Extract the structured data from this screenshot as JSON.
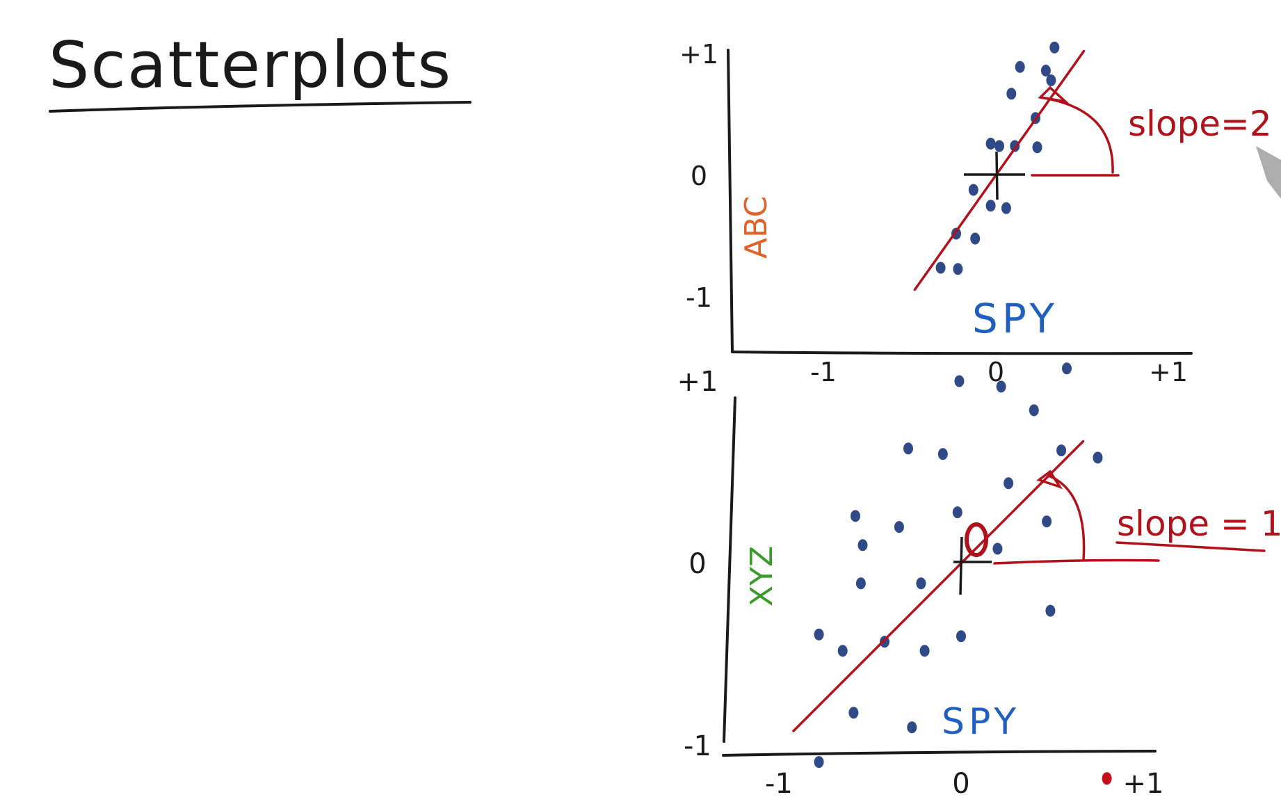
{
  "page": {
    "title": "Scatterplots"
  },
  "colors": {
    "ink": "#1a1a1a",
    "red": "#b0121b",
    "dot": "#2f4a86",
    "spy": "#1f5fbf",
    "abc": "#e0622a",
    "xyz": "#3a9a2a"
  },
  "chart_data": [
    {
      "type": "scatter",
      "xlabel": "SPY",
      "ylabel": "ABC",
      "xlim": [
        -1,
        1
      ],
      "ylim": [
        -1,
        1
      ],
      "x_ticks": [
        -1,
        0,
        1
      ],
      "x_tick_labels": [
        "-1",
        "0",
        "+1"
      ],
      "y_ticks": [
        -1,
        0,
        1
      ],
      "y_tick_labels": [
        "-1",
        "0",
        "+1"
      ],
      "grid": false,
      "points": [
        {
          "x": 0.34,
          "y": 1.05
        },
        {
          "x": 0.14,
          "y": 0.89
        },
        {
          "x": 0.29,
          "y": 0.86
        },
        {
          "x": 0.32,
          "y": 0.78
        },
        {
          "x": 0.09,
          "y": 0.67
        },
        {
          "x": 0.23,
          "y": 0.47
        },
        {
          "x": 0.24,
          "y": 0.23
        },
        {
          "x": -0.03,
          "y": 0.26
        },
        {
          "x": 0.02,
          "y": 0.24
        },
        {
          "x": 0.11,
          "y": 0.24
        },
        {
          "x": -0.13,
          "y": -0.12
        },
        {
          "x": -0.03,
          "y": -0.25
        },
        {
          "x": 0.06,
          "y": -0.27
        },
        {
          "x": -0.23,
          "y": -0.48
        },
        {
          "x": -0.12,
          "y": -0.52
        },
        {
          "x": -0.22,
          "y": -0.77
        },
        {
          "x": -0.32,
          "y": -0.76
        }
      ],
      "fit_line": {
        "slope": 2,
        "intercept": 0
      },
      "annotation": "slope=2"
    },
    {
      "type": "scatter",
      "xlabel": "SPY",
      "ylabel": "XYZ",
      "xlim": [
        -1,
        1
      ],
      "ylim": [
        -1,
        1
      ],
      "x_ticks": [
        -1,
        0,
        1
      ],
      "x_tick_labels": [
        "-1",
        "0",
        "+1"
      ],
      "y_ticks": [
        -1,
        0,
        1
      ],
      "y_tick_labels": [
        "-1",
        "0",
        "+1"
      ],
      "grid": false,
      "points": [
        {
          "x": -0.01,
          "y": 1.0
        },
        {
          "x": 0.22,
          "y": 0.97
        },
        {
          "x": 0.58,
          "y": 1.07
        },
        {
          "x": 0.4,
          "y": 0.84
        },
        {
          "x": -0.29,
          "y": 0.63
        },
        {
          "x": -0.1,
          "y": 0.6
        },
        {
          "x": 0.55,
          "y": 0.62
        },
        {
          "x": 0.75,
          "y": 0.58
        },
        {
          "x": 0.26,
          "y": 0.44
        },
        {
          "x": -0.58,
          "y": 0.26
        },
        {
          "x": -0.34,
          "y": 0.2
        },
        {
          "x": -0.02,
          "y": 0.28
        },
        {
          "x": 0.47,
          "y": 0.23
        },
        {
          "x": -0.54,
          "y": 0.1
        },
        {
          "x": 0.2,
          "y": 0.08
        },
        {
          "x": -0.55,
          "y": -0.11
        },
        {
          "x": -0.22,
          "y": -0.11
        },
        {
          "x": 0.49,
          "y": -0.26
        },
        {
          "x": -0.78,
          "y": -0.39
        },
        {
          "x": -0.65,
          "y": -0.48
        },
        {
          "x": -0.42,
          "y": -0.43
        },
        {
          "x": -0.2,
          "y": -0.48
        },
        {
          "x": 0.0,
          "y": -0.4
        },
        {
          "x": -0.59,
          "y": -0.82
        },
        {
          "x": -0.27,
          "y": -0.9
        },
        {
          "x": -0.78,
          "y": -1.09
        }
      ],
      "highlight_point": {
        "x": 0.8,
        "y": -1.18
      },
      "fit_line": {
        "slope": 1,
        "intercept": 0
      },
      "annotation": "slope = 1"
    }
  ]
}
